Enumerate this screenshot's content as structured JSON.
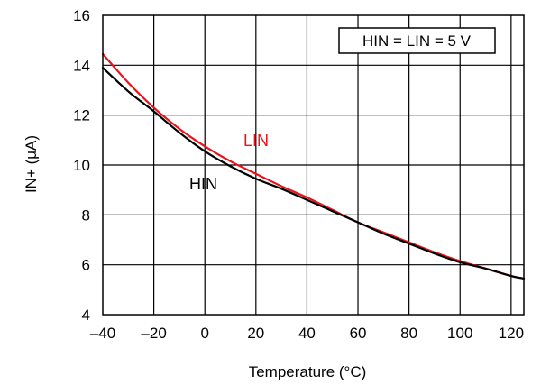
{
  "chart_data": {
    "type": "line",
    "title": "",
    "xlabel": "Temperature (°C)",
    "ylabel": "IN+ (μA)",
    "xlim": [
      -40,
      125
    ],
    "ylim": [
      4,
      16
    ],
    "xticks": [
      -40,
      -20,
      0,
      20,
      40,
      60,
      80,
      100,
      120
    ],
    "xtick_labels": [
      "–40",
      "–20",
      "0",
      "20",
      "40",
      "60",
      "80",
      "100",
      "120"
    ],
    "yticks": [
      4,
      6,
      8,
      10,
      12,
      14,
      16
    ],
    "grid": true,
    "annotation": "HIN = LIN = 5 V",
    "series": [
      {
        "name": "LIN",
        "color": "#e8141c",
        "x": [
          -40,
          -30,
          -20,
          -10,
          0,
          10,
          20,
          30,
          40,
          50,
          60,
          70,
          80,
          90,
          100,
          110,
          120,
          125
        ],
        "y": [
          14.45,
          13.3,
          12.3,
          11.45,
          10.75,
          10.15,
          9.65,
          9.15,
          8.7,
          8.2,
          7.7,
          7.3,
          6.9,
          6.5,
          6.15,
          5.85,
          5.55,
          5.45
        ]
      },
      {
        "name": "HIN",
        "color": "#000000",
        "x": [
          -40,
          -30,
          -20,
          -10,
          0,
          10,
          20,
          30,
          40,
          50,
          60,
          70,
          80,
          90,
          100,
          110,
          120,
          125
        ],
        "y": [
          13.9,
          12.95,
          12.15,
          11.3,
          10.55,
          9.95,
          9.45,
          9.05,
          8.6,
          8.15,
          7.7,
          7.25,
          6.85,
          6.45,
          6.1,
          5.85,
          5.55,
          5.45
        ]
      }
    ]
  }
}
